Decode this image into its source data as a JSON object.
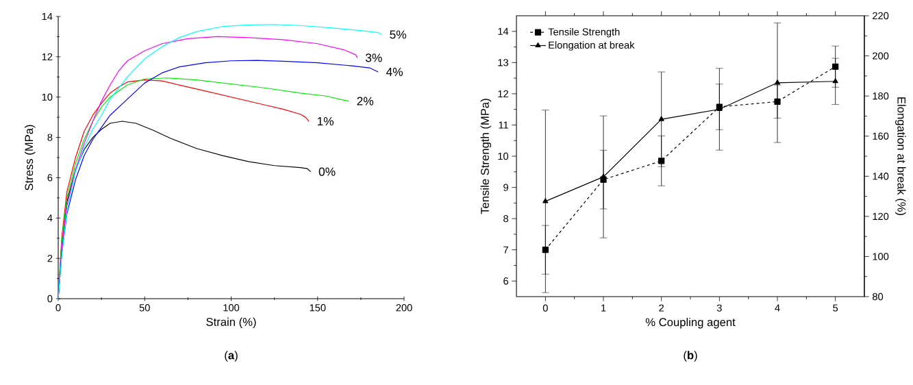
{
  "chart_data": [
    {
      "type": "line",
      "xlabel": "Strain (%)",
      "ylabel": "Stress (MPa)",
      "xlim": [
        0,
        200
      ],
      "ylim": [
        0,
        14
      ],
      "xticks": [
        0,
        50,
        100,
        150,
        200
      ],
      "yticks": [
        0,
        2,
        4,
        6,
        8,
        10,
        12,
        14
      ],
      "annotations": [
        "(**a**)"
      ],
      "series": [
        {
          "name": "0%",
          "color": "#000000",
          "x": [
            0,
            2,
            5,
            10,
            15,
            20,
            25,
            30,
            37,
            45,
            55,
            65,
            80,
            95,
            110,
            125,
            140,
            144,
            146
          ],
          "values": [
            0,
            2.5,
            4.8,
            6.4,
            7.4,
            8.0,
            8.4,
            8.7,
            8.8,
            8.7,
            8.35,
            7.95,
            7.45,
            7.1,
            6.8,
            6.6,
            6.5,
            6.45,
            6.3
          ]
        },
        {
          "name": "1%",
          "color": "#ff0000",
          "x": [
            0,
            2,
            5,
            10,
            15,
            20,
            25,
            30,
            35,
            40,
            50,
            60,
            70,
            80,
            90,
            100,
            110,
            120,
            130,
            140,
            143,
            145
          ],
          "values": [
            0,
            3,
            5.3,
            7.0,
            8.3,
            9.1,
            9.7,
            10.2,
            10.5,
            10.75,
            10.85,
            10.8,
            10.6,
            10.4,
            10.2,
            10.0,
            9.8,
            9.6,
            9.4,
            9.15,
            9.0,
            8.8
          ]
        },
        {
          "name": "2%",
          "color": "#00ee00",
          "x": [
            0,
            2,
            5,
            10,
            15,
            20,
            25,
            30,
            40,
            50,
            63,
            80,
            100,
            120,
            140,
            155,
            165,
            168
          ],
          "values": [
            0,
            2.8,
            5.0,
            6.7,
            7.9,
            8.8,
            9.5,
            10.0,
            10.6,
            10.9,
            10.95,
            10.85,
            10.65,
            10.45,
            10.2,
            10.05,
            9.85,
            9.8
          ]
        },
        {
          "name": "3%",
          "color": "#ff00ff",
          "x": [
            0,
            2,
            5,
            10,
            15,
            20,
            25,
            30,
            35,
            40,
            50,
            60,
            75,
            92,
            110,
            130,
            150,
            165,
            172,
            173
          ],
          "values": [
            0,
            2.5,
            4.6,
            6.4,
            7.7,
            8.8,
            9.8,
            10.6,
            11.3,
            11.8,
            12.3,
            12.65,
            12.9,
            13.0,
            12.95,
            12.85,
            12.65,
            12.35,
            12.1,
            11.95
          ]
        },
        {
          "name": "4%",
          "color": "#0000ff",
          "x": [
            0,
            2,
            5,
            10,
            15,
            20,
            25,
            30,
            40,
            50,
            60,
            70,
            85,
            100,
            115,
            130,
            150,
            170,
            180,
            185
          ],
          "values": [
            0,
            2.2,
            4.2,
            5.9,
            7.1,
            7.9,
            8.5,
            9.1,
            9.9,
            10.7,
            11.2,
            11.5,
            11.7,
            11.8,
            11.82,
            11.78,
            11.7,
            11.55,
            11.45,
            11.25
          ]
        },
        {
          "name": "5%",
          "color": "#00ffff",
          "x": [
            0,
            2,
            5,
            10,
            15,
            20,
            25,
            30,
            40,
            50,
            60,
            70,
            80,
            95,
            110,
            125,
            140,
            160,
            175,
            185,
            187
          ],
          "values": [
            0,
            2.1,
            4.3,
            6.3,
            7.5,
            8.4,
            9.1,
            9.9,
            11.0,
            11.9,
            12.5,
            12.95,
            13.25,
            13.5,
            13.58,
            13.6,
            13.55,
            13.42,
            13.3,
            13.2,
            13.1
          ]
        }
      ]
    },
    {
      "type": "line",
      "xlabel": "% Coupling agent",
      "ylabel": "Tensile Strength (MPa)",
      "y2label": "Elongation at break (%)",
      "x": [
        0,
        1,
        2,
        3,
        4,
        5
      ],
      "xlim": [
        -0.5,
        5.5
      ],
      "xticks": [
        0,
        1,
        2,
        3,
        4,
        5
      ],
      "ylim": [
        5.5,
        14.5
      ],
      "yticks": [
        6,
        7,
        8,
        9,
        10,
        11,
        12,
        13,
        14
      ],
      "y2lim": [
        80,
        220
      ],
      "y2ticks": [
        80,
        100,
        120,
        140,
        160,
        180,
        200,
        220
      ],
      "legend": "top left",
      "annotations": [
        "(**b**)"
      ],
      "series": [
        {
          "name": "Tensile Strength",
          "color": "#000000",
          "marker": "square",
          "line_style": "dashed",
          "values": [
            7.0,
            9.25,
            9.85,
            11.58,
            11.75,
            12.87
          ],
          "errors": [
            0.78,
            0.94,
            0.8,
            0.73,
            0.53,
            0.66
          ]
        },
        {
          "name": "Elongation at break",
          "color": "#010101",
          "marker": "triangle",
          "line_style": "solid",
          "axis": "y2",
          "values": [
            127.5,
            139.7,
            168.4,
            173.4,
            186.6,
            187.3
          ],
          "errors": [
            45.5,
            30.4,
            23.6,
            20.4,
            29.8,
            11.5
          ]
        }
      ]
    }
  ]
}
